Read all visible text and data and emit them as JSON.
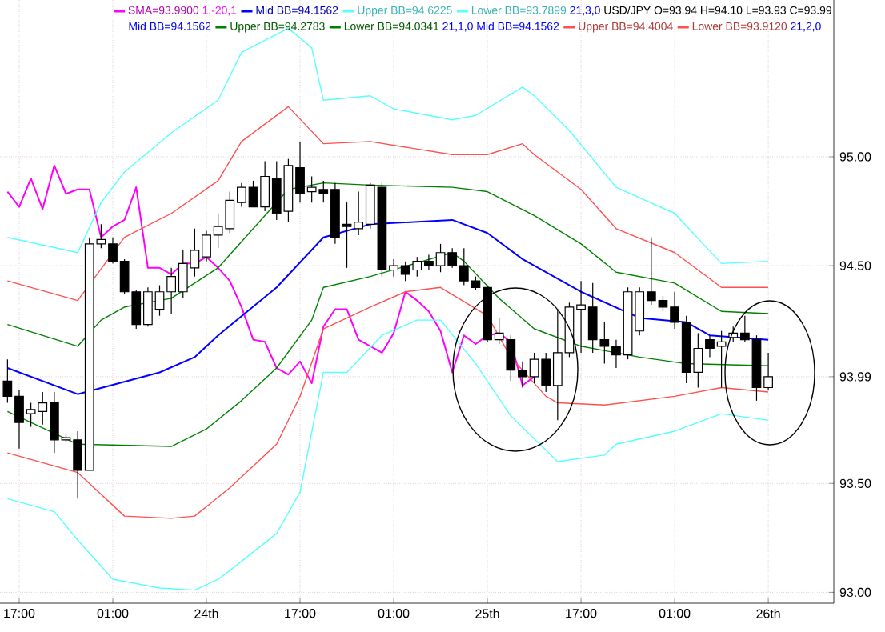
{
  "chart_data": {
    "type": "candlestick",
    "categories": [
      null,
      "17:00",
      null,
      null,
      null,
      null,
      null,
      null,
      null,
      "01:00",
      null,
      null,
      null,
      null,
      null,
      null,
      null,
      "24th",
      null,
      null,
      null,
      null,
      null,
      null,
      null,
      "17:00",
      null,
      null,
      null,
      null,
      null,
      null,
      null,
      "01:00",
      null,
      null,
      null,
      null,
      null,
      null,
      null,
      "25th",
      null,
      null,
      null,
      null,
      null,
      null,
      null,
      "17:00",
      null,
      null,
      null,
      null,
      null,
      null,
      null,
      "01:00",
      null,
      null,
      null,
      null,
      null,
      null,
      null,
      "26th"
    ],
    "ohlc": [
      [
        93.97,
        94.07,
        93.87,
        93.9
      ],
      [
        93.9,
        93.93,
        93.66,
        93.78
      ],
      [
        93.82,
        93.87,
        93.76,
        93.84
      ],
      [
        93.83,
        93.92,
        93.77,
        93.87
      ],
      [
        93.87,
        93.92,
        93.64,
        93.7
      ],
      [
        93.7,
        93.73,
        93.69,
        93.71
      ],
      [
        93.7,
        93.74,
        93.43,
        93.56
      ],
      [
        93.56,
        94.63,
        93.56,
        94.6
      ],
      [
        94.6,
        94.69,
        94.58,
        94.62
      ],
      [
        94.6,
        94.63,
        94.51,
        94.52
      ],
      [
        94.52,
        94.53,
        94.37,
        94.38
      ],
      [
        94.38,
        94.39,
        94.21,
        94.23
      ],
      [
        94.23,
        94.4,
        94.22,
        94.38
      ],
      [
        94.3,
        94.41,
        94.27,
        94.38
      ],
      [
        94.38,
        94.49,
        94.28,
        94.45
      ],
      [
        94.38,
        94.57,
        94.35,
        94.51
      ],
      [
        94.49,
        94.67,
        94.45,
        94.57
      ],
      [
        94.54,
        94.66,
        94.52,
        94.64
      ],
      [
        94.64,
        94.74,
        94.58,
        94.68
      ],
      [
        94.67,
        94.84,
        94.65,
        94.8
      ],
      [
        94.79,
        94.88,
        94.77,
        94.86
      ],
      [
        94.86,
        94.89,
        94.77,
        94.77
      ],
      [
        94.77,
        94.98,
        94.75,
        94.91
      ],
      [
        94.9,
        94.98,
        94.71,
        94.74
      ],
      [
        94.75,
        94.99,
        94.7,
        94.96
      ],
      [
        94.95,
        95.07,
        94.79,
        94.83
      ],
      [
        94.84,
        94.91,
        94.79,
        94.86
      ],
      [
        94.85,
        94.89,
        94.79,
        94.83
      ],
      [
        94.85,
        94.88,
        94.6,
        94.63
      ],
      [
        94.69,
        94.79,
        94.49,
        94.68
      ],
      [
        94.67,
        94.84,
        94.64,
        94.7
      ],
      [
        94.69,
        94.88,
        94.67,
        94.87
      ],
      [
        94.86,
        94.88,
        94.45,
        94.48
      ],
      [
        94.48,
        94.53,
        94.45,
        94.5
      ],
      [
        94.5,
        94.52,
        94.43,
        94.46
      ],
      [
        94.48,
        94.54,
        94.45,
        94.52
      ],
      [
        94.52,
        94.55,
        94.48,
        94.5
      ],
      [
        94.5,
        94.6,
        94.47,
        94.56
      ],
      [
        94.56,
        94.58,
        94.49,
        94.5
      ],
      [
        94.5,
        94.58,
        94.41,
        94.43
      ],
      [
        94.43,
        94.45,
        94.39,
        94.4
      ],
      [
        94.4,
        94.41,
        94.15,
        94.16
      ],
      [
        94.16,
        94.26,
        94.14,
        94.19
      ],
      [
        94.16,
        94.18,
        93.97,
        94.02
      ],
      [
        94.02,
        94.06,
        93.94,
        93.99
      ],
      [
        93.99,
        94.1,
        93.96,
        94.07
      ],
      [
        94.07,
        94.1,
        93.92,
        93.95
      ],
      [
        93.95,
        94.3,
        93.79,
        94.1
      ],
      [
        94.1,
        94.33,
        94.08,
        94.31
      ],
      [
        94.3,
        94.43,
        94.1,
        94.32
      ],
      [
        94.31,
        94.42,
        94.1,
        94.16
      ],
      [
        94.16,
        94.24,
        94.05,
        94.13
      ],
      [
        94.13,
        94.16,
        94.03,
        94.09
      ],
      [
        94.09,
        94.4,
        94.07,
        94.38
      ],
      [
        94.2,
        94.4,
        94.18,
        94.38
      ],
      [
        94.38,
        94.63,
        94.32,
        94.34
      ],
      [
        94.34,
        94.36,
        94.29,
        94.31
      ],
      [
        94.31,
        94.38,
        94.21,
        94.24
      ],
      [
        94.24,
        94.27,
        93.96,
        94.01
      ],
      [
        94.01,
        94.19,
        93.94,
        94.12
      ],
      [
        94.16,
        94.18,
        94.08,
        94.12
      ],
      [
        94.13,
        94.2,
        93.94,
        94.15
      ],
      [
        94.17,
        94.22,
        94.15,
        94.19
      ],
      [
        94.19,
        94.27,
        94.15,
        94.16
      ],
      [
        94.16,
        94.18,
        93.88,
        93.94
      ],
      [
        93.94,
        94.1,
        93.93,
        93.99
      ]
    ],
    "series": [
      {
        "type": "line",
        "name": "SMA=93.9900",
        "color": "#ff00ff",
        "values": [
          94.84,
          94.77,
          94.9,
          94.76,
          94.96,
          94.83,
          94.85,
          94.85,
          94.63,
          94.68,
          94.71,
          94.86,
          94.49,
          94.49,
          94.46,
          94.51,
          94.51,
          94.54,
          94.49,
          94.43,
          94.31,
          94.16,
          94.15,
          94.03,
          94.0,
          94.06,
          93.96,
          94.22,
          94.3,
          94.3,
          94.16,
          94.13,
          94.1,
          94.19,
          94.38,
          94.34,
          94.29,
          94.2,
          94.01,
          94.18,
          94.14,
          94.18,
          94.19,
          94.15,
          93.95,
          93.99,
          null,
          null,
          null,
          null,
          null,
          null,
          null,
          null,
          null,
          null,
          null,
          null,
          null,
          null,
          null,
          null,
          null,
          null,
          null,
          null
        ]
      },
      {
        "type": "line",
        "name": "Mid BB=94.1562",
        "color": "#0000ff",
        "values": [
          94.03,
          null,
          null,
          null,
          null,
          null,
          93.91,
          null,
          null,
          null,
          null,
          null,
          null,
          94.01,
          null,
          null,
          94.08,
          null,
          94.18,
          null,
          null,
          null,
          null,
          94.4,
          null,
          null,
          null,
          94.63,
          null,
          null,
          null,
          94.69,
          null,
          null,
          null,
          null,
          null,
          null,
          94.71,
          null,
          null,
          94.65,
          null,
          null,
          94.53,
          null,
          null,
          null,
          null,
          94.38,
          null,
          null,
          null,
          null,
          94.26,
          null,
          null,
          null,
          94.24,
          null,
          94.18,
          null,
          null,
          null,
          null,
          94.16
        ]
      },
      {
        "type": "line",
        "name": "Upper BB=94.6225",
        "color": "#55ffff",
        "values": [
          94.63,
          null,
          null,
          null,
          null,
          null,
          94.56,
          null,
          94.79,
          null,
          94.93,
          null,
          null,
          null,
          95.11,
          null,
          null,
          null,
          95.26,
          null,
          95.48,
          null,
          null,
          null,
          95.59,
          null,
          95.5,
          95.26,
          null,
          null,
          null,
          95.28,
          null,
          95.22,
          null,
          null,
          null,
          null,
          95.17,
          null,
          95.19,
          null,
          null,
          null,
          95.32,
          95.28,
          null,
          null,
          95.12,
          null,
          null,
          null,
          94.86,
          null,
          null,
          null,
          null,
          94.74,
          null,
          null,
          null,
          94.51,
          null,
          null,
          null,
          94.52
        ]
      },
      {
        "type": "line",
        "name": "Lower BB=93.7899",
        "color": "#55ffff",
        "values": [
          93.43,
          null,
          null,
          null,
          93.37,
          null,
          93.24,
          null,
          null,
          93.06,
          null,
          null,
          null,
          93.02,
          null,
          null,
          93.01,
          null,
          93.06,
          93.1,
          null,
          null,
          null,
          93.27,
          null,
          93.46,
          null,
          94.01,
          null,
          94.01,
          null,
          null,
          94.18,
          null,
          null,
          94.25,
          null,
          94.25,
          null,
          null,
          94.05,
          null,
          null,
          93.81,
          null,
          null,
          null,
          93.6,
          null,
          null,
          null,
          93.63,
          93.68,
          null,
          null,
          null,
          null,
          93.74,
          null,
          null,
          null,
          93.82,
          null,
          null,
          null,
          93.79
        ]
      },
      {
        "type": "line",
        "name": "Upper BB=94.2783",
        "color": "#008000",
        "values": [
          94.23,
          null,
          null,
          null,
          null,
          null,
          94.13,
          null,
          94.25,
          null,
          94.31,
          null,
          null,
          null,
          94.35,
          null,
          null,
          null,
          94.49,
          null,
          null,
          94.67,
          null,
          null,
          94.85,
          null,
          null,
          94.88,
          null,
          null,
          null,
          94.87,
          null,
          null,
          null,
          null,
          null,
          null,
          94.86,
          null,
          null,
          94.84,
          null,
          null,
          null,
          94.73,
          null,
          null,
          null,
          94.6,
          null,
          null,
          94.47,
          null,
          null,
          null,
          null,
          94.42,
          null,
          null,
          null,
          94.29,
          null,
          null,
          null,
          94.28
        ]
      },
      {
        "type": "line",
        "name": "Lower BB=94.0341",
        "color": "#008000",
        "values": [
          93.83,
          null,
          null,
          null,
          null,
          null,
          93.68,
          null,
          null,
          null,
          null,
          null,
          null,
          null,
          93.67,
          null,
          null,
          93.75,
          null,
          null,
          93.88,
          null,
          null,
          94.03,
          null,
          null,
          94.25,
          94.4,
          null,
          null,
          null,
          94.45,
          null,
          null,
          null,
          null,
          null,
          null,
          94.56,
          94.52,
          null,
          null,
          94.35,
          null,
          null,
          94.21,
          null,
          null,
          null,
          94.13,
          null,
          null,
          null,
          null,
          94.08,
          null,
          null,
          null,
          94.05,
          null,
          null,
          null,
          null,
          null,
          null,
          94.04
        ]
      },
      {
        "type": "line",
        "name": "Upper BB=94.4004",
        "color": "#ff5050",
        "values": [
          94.43,
          null,
          null,
          null,
          null,
          null,
          94.34,
          null,
          null,
          null,
          94.63,
          null,
          null,
          null,
          94.74,
          null,
          null,
          null,
          94.89,
          null,
          95.07,
          null,
          null,
          null,
          95.23,
          null,
          null,
          95.06,
          null,
          null,
          null,
          95.07,
          null,
          null,
          null,
          null,
          null,
          null,
          95.01,
          null,
          null,
          95.01,
          null,
          null,
          95.06,
          95.01,
          null,
          null,
          null,
          94.85,
          null,
          null,
          94.67,
          null,
          null,
          null,
          null,
          94.56,
          null,
          null,
          null,
          94.4,
          null,
          null,
          null,
          94.4
        ]
      },
      {
        "type": "line",
        "name": "Lower BB=93.9120",
        "color": "#ff5050",
        "values": [
          93.64,
          null,
          null,
          null,
          null,
          null,
          93.55,
          null,
          null,
          null,
          93.35,
          null,
          null,
          null,
          93.34,
          null,
          93.35,
          null,
          null,
          93.48,
          null,
          null,
          null,
          93.68,
          null,
          93.9,
          null,
          94.21,
          null,
          null,
          null,
          94.31,
          null,
          null,
          94.38,
          null,
          null,
          94.4,
          null,
          null,
          null,
          94.27,
          null,
          94.08,
          null,
          null,
          93.9,
          93.87,
          null,
          null,
          null,
          93.86,
          null,
          null,
          null,
          null,
          null,
          93.9,
          null,
          null,
          null,
          93.94,
          null,
          null,
          null,
          93.92
        ]
      }
    ],
    "annotations": [
      "1,-20,1",
      "21,3,0",
      "USD/JPY O=93.94 H=94.10 L=93.93 C=93.99",
      "Mid BB=94.1562",
      "21,1,0",
      "Mid BB=94.1562",
      "21,2,0"
    ],
    "ylim": [
      92.95,
      95.72
    ],
    "yticks": [
      {
        "value": 93,
        "label": "93.00"
      },
      {
        "value": 93.5,
        "label": "93.50"
      },
      93.99,
      {
        "value": 94.5,
        "label": "94.50"
      },
      {
        "value": 95,
        "label": "95.00"
      }
    ],
    "grid": true,
    "legend": "top"
  }
}
